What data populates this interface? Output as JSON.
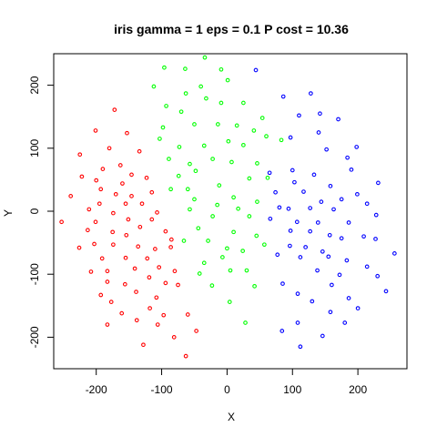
{
  "chart_data": {
    "type": "scatter",
    "title": "iris gamma = 1 eps = 0.1 P cost = 10.36",
    "xlabel": "X",
    "ylabel": "Y",
    "xlim": [
      -265,
      275
    ],
    "ylim": [
      -250,
      250
    ],
    "xticks": [
      -200,
      -100,
      0,
      100,
      200
    ],
    "yticks": [
      -200,
      -100,
      0,
      100,
      200
    ],
    "grid": false,
    "marker": "open-circle",
    "series": [
      {
        "color": "#ff0000",
        "points": [
          [
            -172,
            161
          ],
          [
            -153,
            124
          ],
          [
            -201,
            128
          ],
          [
            -225,
            90
          ],
          [
            -180,
            100
          ],
          [
            -190,
            67
          ],
          [
            -163,
            73
          ],
          [
            -134,
            95
          ],
          [
            -222,
            55
          ],
          [
            -200,
            49
          ],
          [
            -146,
            58
          ],
          [
            -160,
            44
          ],
          [
            -123,
            53
          ],
          [
            -239,
            24
          ],
          [
            -193,
            35
          ],
          [
            -170,
            27
          ],
          [
            -146,
            24
          ],
          [
            -115,
            30
          ],
          [
            -195,
            12
          ],
          [
            -155,
            12
          ],
          [
            -130,
            12
          ],
          [
            -211,
            3
          ],
          [
            -174,
            -3
          ],
          [
            -107,
            -2
          ],
          [
            -253,
            -17
          ],
          [
            -201,
            -17
          ],
          [
            -151,
            -13
          ],
          [
            -115,
            -13
          ],
          [
            -133,
            -25
          ],
          [
            -213,
            -30
          ],
          [
            -175,
            -33
          ],
          [
            -154,
            -38
          ],
          [
            -203,
            -52
          ],
          [
            -174,
            -53
          ],
          [
            -226,
            -58
          ],
          [
            -136,
            -56
          ],
          [
            -110,
            -60
          ],
          [
            -85,
            -45
          ],
          [
            -94,
            -32
          ],
          [
            -86,
            -57
          ],
          [
            -191,
            -75
          ],
          [
            -155,
            -74
          ],
          [
            -122,
            -75
          ],
          [
            -208,
            -96
          ],
          [
            -183,
            -95
          ],
          [
            -141,
            -91
          ],
          [
            -104,
            -89
          ],
          [
            -80,
            -95
          ],
          [
            -183,
            -112
          ],
          [
            -119,
            -105
          ],
          [
            -156,
            -116
          ],
          [
            -94,
            -114
          ],
          [
            -75,
            -117
          ],
          [
            -139,
            -128
          ],
          [
            -193,
            -133
          ],
          [
            -108,
            -137
          ],
          [
            -177,
            -144
          ],
          [
            -118,
            -154
          ],
          [
            -161,
            -162
          ],
          [
            -97,
            -165
          ],
          [
            -60,
            -164
          ],
          [
            -138,
            -173
          ],
          [
            -183,
            -180
          ],
          [
            -106,
            -180
          ],
          [
            -47,
            -190
          ],
          [
            -81,
            -200
          ],
          [
            -128,
            -212
          ],
          [
            -63,
            -230
          ]
        ]
      },
      {
        "color": "#00ff00",
        "points": [
          [
            -34,
            244
          ],
          [
            -96,
            228
          ],
          [
            -64,
            226
          ],
          [
            -9,
            225
          ],
          [
            1,
            208
          ],
          [
            -112,
            198
          ],
          [
            -40,
            198
          ],
          [
            -63,
            187
          ],
          [
            -93,
            167
          ],
          [
            -32,
            179
          ],
          [
            -70,
            158
          ],
          [
            25,
            172
          ],
          [
            -9,
            172
          ],
          [
            -98,
            133
          ],
          [
            -50,
            138
          ],
          [
            -14,
            138
          ],
          [
            54,
            148
          ],
          [
            15,
            136
          ],
          [
            41,
            128
          ],
          [
            -73,
            102
          ],
          [
            -35,
            104
          ],
          [
            2,
            111
          ],
          [
            -103,
            115
          ],
          [
            60,
            119
          ],
          [
            -89,
            83
          ],
          [
            25,
            105
          ],
          [
            -57,
            75
          ],
          [
            -22,
            83
          ],
          [
            83,
            113
          ],
          [
            -74,
            56
          ],
          [
            7,
            78
          ],
          [
            46,
            76
          ],
          [
            62,
            53
          ],
          [
            -86,
            35
          ],
          [
            -12,
            41
          ],
          [
            -48,
            64
          ],
          [
            34,
            52
          ],
          [
            -50,
            19
          ],
          [
            -15,
            10
          ],
          [
            -60,
            35
          ],
          [
            10,
            22
          ],
          [
            46,
            15
          ],
          [
            -22,
            -8
          ],
          [
            17,
            4
          ],
          [
            -44,
            -27
          ],
          [
            34,
            -8
          ],
          [
            10,
            -33
          ],
          [
            -57,
            3
          ],
          [
            45,
            -39
          ],
          [
            -29,
            -47
          ],
          [
            0,
            -59
          ],
          [
            24,
            -63
          ],
          [
            -7,
            -73
          ],
          [
            57,
            -53
          ],
          [
            -66,
            -47
          ],
          [
            -35,
            -82
          ],
          [
            30,
            -94
          ],
          [
            5,
            -94
          ],
          [
            -23,
            -118
          ],
          [
            42,
            -119
          ],
          [
            -42,
            -99
          ],
          [
            4,
            -144
          ],
          [
            28,
            -177
          ]
        ]
      },
      {
        "color": "#0000ff",
        "points": [
          [
            44,
            224
          ],
          [
            128,
            187
          ],
          [
            86,
            182
          ],
          [
            142,
            155
          ],
          [
            110,
            152
          ],
          [
            170,
            146
          ],
          [
            97,
            117
          ],
          [
            140,
            125
          ],
          [
            198,
            102
          ],
          [
            152,
            98
          ],
          [
            100,
            65
          ],
          [
            74,
            30
          ],
          [
            103,
            46
          ],
          [
            65,
            61
          ],
          [
            133,
            58
          ],
          [
            184,
            85
          ],
          [
            190,
            66
          ],
          [
            80,
            6
          ],
          [
            117,
            31
          ],
          [
            158,
            40
          ],
          [
            231,
            45
          ],
          [
            144,
            15
          ],
          [
            199,
            27
          ],
          [
            94,
            4
          ],
          [
            214,
            12
          ],
          [
            175,
            19
          ],
          [
            127,
            5
          ],
          [
            163,
            3
          ],
          [
            228,
            -6
          ],
          [
            107,
            -17
          ],
          [
            139,
            -18
          ],
          [
            186,
            -18
          ],
          [
            66,
            -12
          ],
          [
            97,
            -31
          ],
          [
            127,
            -32
          ],
          [
            157,
            -38
          ],
          [
            175,
            -43
          ],
          [
            227,
            -44
          ],
          [
            209,
            -40
          ],
          [
            256,
            -67
          ],
          [
            120,
            -57
          ],
          [
            146,
            -64
          ],
          [
            96,
            -55
          ],
          [
            77,
            -69
          ],
          [
            112,
            -73
          ],
          [
            155,
            -72
          ],
          [
            183,
            -78
          ],
          [
            214,
            -88
          ],
          [
            138,
            -94
          ],
          [
            172,
            -101
          ],
          [
            85,
            -115
          ],
          [
            230,
            -103
          ],
          [
            160,
            -117
          ],
          [
            108,
            -131
          ],
          [
            243,
            -127
          ],
          [
            186,
            -138
          ],
          [
            130,
            -143
          ],
          [
            200,
            -154
          ],
          [
            158,
            -160
          ],
          [
            108,
            -177
          ],
          [
            84,
            -190
          ],
          [
            180,
            -177
          ],
          [
            146,
            -198
          ],
          [
            112,
            -215
          ]
        ]
      }
    ]
  }
}
